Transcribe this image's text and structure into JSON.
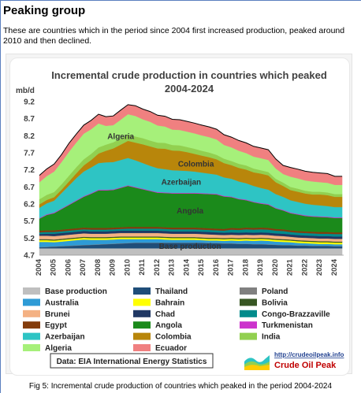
{
  "heading": "Peaking group",
  "intro": "These are countries which in the period since 2004 first increased production, peaked around 2010 and then declined.",
  "caption": "Fig 5: Incremental crude production of countries which peaked in the period 2004-2024",
  "source_note": "Data: EIA International Energy Statistics",
  "logo": {
    "url": "http://crudeoilpeak.info",
    "name": "Crude Oil Peak"
  },
  "chart_data": {
    "type": "area",
    "title": "Incremental crude production in countries which peaked",
    "subtitle": "2004-2024",
    "ylabel": "mb/d",
    "xlabel": "",
    "ylim": [
      4.7,
      9.2
    ],
    "y_ticks": [
      "4.7",
      "5.2",
      "5.7",
      "6.2",
      "6.7",
      "7.2",
      "7.7",
      "8.2",
      "8.7",
      "9.2"
    ],
    "x_ticks": [
      "2004",
      "2005",
      "2006",
      "2007",
      "2008",
      "2009",
      "2010",
      "2011",
      "2012",
      "2013",
      "2014",
      "2015",
      "2016",
      "2017",
      "2018",
      "2019",
      "2020",
      "2021",
      "2022",
      "2023",
      "2024"
    ],
    "grid": false,
    "legend_position": "bottom",
    "x": [
      2004.0,
      2004.5,
      2005.0,
      2005.5,
      2006.0,
      2006.5,
      2007.0,
      2007.5,
      2008.0,
      2008.5,
      2009.0,
      2009.5,
      2010.0,
      2010.5,
      2011.0,
      2011.5,
      2012.0,
      2012.5,
      2013.0,
      2013.5,
      2014.0,
      2014.5,
      2015.0,
      2015.5,
      2016.0,
      2016.5,
      2017.0,
      2017.5,
      2018.0,
      2018.5,
      2019.0,
      2019.5,
      2020.0,
      2020.5,
      2021.0,
      2021.5,
      2022.0,
      2022.5,
      2023.0,
      2023.5,
      2024.0,
      2024.5
    ],
    "base_production": 4.7,
    "series": [
      {
        "name": "Base production",
        "color": "#bfbfbf",
        "values": [
          0.2,
          0.2,
          0.2,
          0.2,
          0.2,
          0.2,
          0.2,
          0.2,
          0.2,
          0.2,
          0.2,
          0.2,
          0.2,
          0.2,
          0.2,
          0.2,
          0.2,
          0.2,
          0.2,
          0.2,
          0.2,
          0.2,
          0.2,
          0.2,
          0.2,
          0.2,
          0.2,
          0.2,
          0.2,
          0.2,
          0.2,
          0.2,
          0.2,
          0.2,
          0.2,
          0.2,
          0.2,
          0.2,
          0.2,
          0.2,
          0.2,
          0.2
        ]
      },
      {
        "name": "Thailand",
        "color": "#1f4e79",
        "values": [
          0.03,
          0.04,
          0.05,
          0.06,
          0.07,
          0.08,
          0.09,
          0.1,
          0.11,
          0.12,
          0.13,
          0.14,
          0.15,
          0.16,
          0.16,
          0.16,
          0.16,
          0.16,
          0.16,
          0.16,
          0.16,
          0.16,
          0.16,
          0.15,
          0.15,
          0.14,
          0.14,
          0.13,
          0.13,
          0.12,
          0.12,
          0.11,
          0.1,
          0.09,
          0.09,
          0.08,
          0.08,
          0.07,
          0.07,
          0.07,
          0.06,
          0.06
        ]
      },
      {
        "name": "Poland",
        "color": "#808080",
        "values": [
          0.01,
          0.01,
          0.01,
          0.01,
          0.01,
          0.01,
          0.01,
          0.01,
          0.01,
          0.01,
          0.01,
          0.01,
          0.01,
          0.01,
          0.01,
          0.01,
          0.01,
          0.01,
          0.01,
          0.01,
          0.01,
          0.01,
          0.01,
          0.01,
          0.01,
          0.01,
          0.01,
          0.01,
          0.01,
          0.01,
          0.01,
          0.01,
          0.01,
          0.01,
          0.01,
          0.01,
          0.01,
          0.01,
          0.01,
          0.01,
          0.01,
          0.01
        ]
      },
      {
        "name": "Australia",
        "color": "#2e9bd6",
        "values": [
          0.15,
          0.14,
          0.12,
          0.13,
          0.14,
          0.15,
          0.16,
          0.14,
          0.13,
          0.12,
          0.12,
          0.12,
          0.11,
          0.1,
          0.1,
          0.1,
          0.1,
          0.09,
          0.08,
          0.08,
          0.08,
          0.08,
          0.07,
          0.07,
          0.07,
          0.07,
          0.08,
          0.08,
          0.09,
          0.09,
          0.1,
          0.1,
          0.09,
          0.09,
          0.08,
          0.07,
          0.06,
          0.06,
          0.05,
          0.05,
          0.05,
          0.05
        ]
      },
      {
        "name": "Bahrain",
        "color": "#ffff00",
        "values": [
          0.05,
          0.05,
          0.05,
          0.05,
          0.05,
          0.05,
          0.05,
          0.05,
          0.05,
          0.05,
          0.05,
          0.05,
          0.05,
          0.05,
          0.05,
          0.05,
          0.05,
          0.05,
          0.05,
          0.05,
          0.05,
          0.05,
          0.05,
          0.05,
          0.05,
          0.05,
          0.05,
          0.05,
          0.05,
          0.05,
          0.05,
          0.05,
          0.05,
          0.05,
          0.05,
          0.05,
          0.05,
          0.05,
          0.05,
          0.05,
          0.05,
          0.05
        ]
      },
      {
        "name": "Bolivia",
        "color": "#375623",
        "values": [
          0.03,
          0.03,
          0.03,
          0.03,
          0.03,
          0.03,
          0.03,
          0.03,
          0.03,
          0.03,
          0.03,
          0.03,
          0.03,
          0.03,
          0.03,
          0.03,
          0.03,
          0.03,
          0.03,
          0.03,
          0.03,
          0.03,
          0.03,
          0.03,
          0.03,
          0.03,
          0.03,
          0.03,
          0.03,
          0.03,
          0.03,
          0.03,
          0.03,
          0.03,
          0.03,
          0.03,
          0.03,
          0.03,
          0.03,
          0.03,
          0.03,
          0.03
        ]
      },
      {
        "name": "Brunei",
        "color": "#f4b183",
        "values": [
          0.1,
          0.1,
          0.1,
          0.1,
          0.1,
          0.1,
          0.1,
          0.1,
          0.1,
          0.1,
          0.1,
          0.1,
          0.1,
          0.1,
          0.1,
          0.1,
          0.1,
          0.1,
          0.1,
          0.1,
          0.1,
          0.1,
          0.1,
          0.1,
          0.09,
          0.09,
          0.09,
          0.09,
          0.09,
          0.09,
          0.09,
          0.09,
          0.09,
          0.09,
          0.08,
          0.08,
          0.08,
          0.08,
          0.08,
          0.08,
          0.08,
          0.08
        ]
      },
      {
        "name": "Chad",
        "color": "#203864",
        "values": [
          0.05,
          0.06,
          0.07,
          0.07,
          0.07,
          0.07,
          0.07,
          0.07,
          0.07,
          0.07,
          0.07,
          0.07,
          0.07,
          0.07,
          0.07,
          0.07,
          0.07,
          0.07,
          0.07,
          0.07,
          0.07,
          0.07,
          0.07,
          0.07,
          0.07,
          0.07,
          0.07,
          0.07,
          0.07,
          0.07,
          0.07,
          0.07,
          0.07,
          0.07,
          0.07,
          0.07,
          0.07,
          0.07,
          0.07,
          0.07,
          0.07,
          0.07
        ]
      },
      {
        "name": "Congo-Brazzaville",
        "color": "#008b8b",
        "values": [
          0.05,
          0.05,
          0.05,
          0.05,
          0.05,
          0.05,
          0.05,
          0.05,
          0.05,
          0.05,
          0.05,
          0.05,
          0.06,
          0.06,
          0.06,
          0.06,
          0.06,
          0.06,
          0.06,
          0.06,
          0.06,
          0.06,
          0.06,
          0.06,
          0.06,
          0.06,
          0.08,
          0.08,
          0.09,
          0.09,
          0.09,
          0.09,
          0.08,
          0.08,
          0.07,
          0.07,
          0.07,
          0.07,
          0.07,
          0.07,
          0.07,
          0.07
        ]
      },
      {
        "name": "Egypt",
        "color": "#843c0c",
        "values": [
          0.05,
          0.05,
          0.05,
          0.05,
          0.05,
          0.05,
          0.05,
          0.05,
          0.05,
          0.05,
          0.05,
          0.05,
          0.05,
          0.05,
          0.05,
          0.05,
          0.05,
          0.05,
          0.05,
          0.05,
          0.05,
          0.05,
          0.05,
          0.05,
          0.05,
          0.05,
          0.05,
          0.05,
          0.05,
          0.05,
          0.05,
          0.05,
          0.05,
          0.05,
          0.05,
          0.05,
          0.05,
          0.05,
          0.05,
          0.05,
          0.05,
          0.05
        ]
      },
      {
        "name": "Angola",
        "color": "#1b8a1b",
        "values": [
          0.35,
          0.45,
          0.5,
          0.6,
          0.7,
          0.8,
          0.9,
          1.0,
          1.1,
          1.1,
          1.1,
          1.15,
          1.2,
          1.15,
          1.1,
          1.05,
          1.0,
          1.0,
          1.0,
          1.0,
          1.0,
          1.0,
          1.0,
          1.0,
          1.0,
          0.95,
          0.9,
          0.85,
          0.8,
          0.75,
          0.7,
          0.68,
          0.6,
          0.55,
          0.5,
          0.48,
          0.45,
          0.44,
          0.44,
          0.43,
          0.42,
          0.42
        ]
      },
      {
        "name": "Turkmenistan",
        "color": "#cc33cc",
        "values": [
          0.02,
          0.02,
          0.02,
          0.02,
          0.02,
          0.02,
          0.02,
          0.02,
          0.02,
          0.02,
          0.02,
          0.02,
          0.02,
          0.02,
          0.02,
          0.02,
          0.02,
          0.02,
          0.02,
          0.02,
          0.02,
          0.02,
          0.02,
          0.02,
          0.02,
          0.02,
          0.02,
          0.02,
          0.02,
          0.02,
          0.02,
          0.02,
          0.02,
          0.02,
          0.02,
          0.02,
          0.02,
          0.02,
          0.02,
          0.02,
          0.02,
          0.02
        ]
      },
      {
        "name": "Azerbaijan",
        "color": "#2ec4c4",
        "values": [
          0.3,
          0.32,
          0.35,
          0.45,
          0.55,
          0.65,
          0.72,
          0.75,
          0.78,
          0.8,
          0.8,
          0.8,
          0.8,
          0.78,
          0.75,
          0.72,
          0.7,
          0.68,
          0.66,
          0.65,
          0.64,
          0.62,
          0.6,
          0.58,
          0.56,
          0.54,
          0.52,
          0.5,
          0.48,
          0.46,
          0.44,
          0.42,
          0.4,
          0.38,
          0.36,
          0.35,
          0.34,
          0.33,
          0.32,
          0.31,
          0.3,
          0.3
        ]
      },
      {
        "name": "Colombia",
        "color": "#b8860b",
        "values": [
          0.1,
          0.1,
          0.1,
          0.1,
          0.12,
          0.14,
          0.18,
          0.22,
          0.28,
          0.34,
          0.4,
          0.45,
          0.5,
          0.52,
          0.55,
          0.57,
          0.58,
          0.6,
          0.58,
          0.58,
          0.55,
          0.52,
          0.5,
          0.48,
          0.45,
          0.42,
          0.4,
          0.4,
          0.4,
          0.4,
          0.42,
          0.42,
          0.35,
          0.32,
          0.3,
          0.3,
          0.3,
          0.3,
          0.32,
          0.32,
          0.3,
          0.3
        ]
      },
      {
        "name": "India",
        "color": "#92d050",
        "values": [
          0.15,
          0.15,
          0.15,
          0.16,
          0.17,
          0.18,
          0.18,
          0.18,
          0.18,
          0.18,
          0.18,
          0.18,
          0.18,
          0.18,
          0.18,
          0.17,
          0.17,
          0.17,
          0.16,
          0.16,
          0.15,
          0.15,
          0.14,
          0.14,
          0.13,
          0.13,
          0.12,
          0.12,
          0.12,
          0.11,
          0.1,
          0.1,
          0.1,
          0.1,
          0.09,
          0.09,
          0.08,
          0.08,
          0.08,
          0.08,
          0.08,
          0.08
        ]
      },
      {
        "name": "Algeria",
        "color": "#a6f07a",
        "values": [
          0.5,
          0.55,
          0.6,
          0.65,
          0.7,
          0.72,
          0.75,
          0.72,
          0.7,
          0.55,
          0.5,
          0.55,
          0.6,
          0.6,
          0.55,
          0.55,
          0.5,
          0.48,
          0.45,
          0.45,
          0.45,
          0.45,
          0.45,
          0.45,
          0.45,
          0.4,
          0.4,
          0.38,
          0.36,
          0.35,
          0.35,
          0.35,
          0.3,
          0.25,
          0.3,
          0.3,
          0.3,
          0.3,
          0.28,
          0.28,
          0.27,
          0.27
        ]
      },
      {
        "name": "Ecuador",
        "color": "#f08080",
        "values": [
          0.2,
          0.21,
          0.22,
          0.22,
          0.25,
          0.25,
          0.25,
          0.26,
          0.27,
          0.27,
          0.27,
          0.28,
          0.28,
          0.3,
          0.3,
          0.3,
          0.3,
          0.3,
          0.3,
          0.3,
          0.3,
          0.3,
          0.3,
          0.3,
          0.3,
          0.3,
          0.3,
          0.3,
          0.3,
          0.3,
          0.3,
          0.3,
          0.28,
          0.25,
          0.27,
          0.27,
          0.27,
          0.27,
          0.27,
          0.27,
          0.25,
          0.25
        ]
      }
    ],
    "annotations": [
      "Algeria",
      "Colombia",
      "Azerbaijan",
      "Angola",
      "Base production"
    ]
  },
  "colors": {
    "total_line": "#000000",
    "label_text": "#333333"
  }
}
